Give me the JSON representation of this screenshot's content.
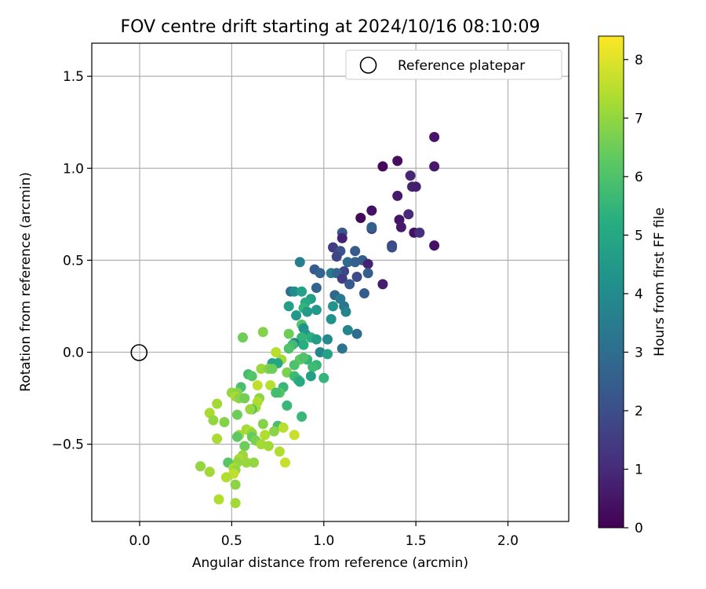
{
  "chart_data": {
    "type": "scatter",
    "title": "FOV centre drift starting at 2024/10/16 08:10:09",
    "xlabel": "Angular distance from reference (arcmin)",
    "ylabel": "Rotation from reference (arcmin)",
    "xlim": [
      -0.26,
      2.33
    ],
    "ylim": [
      -0.92,
      1.68
    ],
    "xticks": [
      0.0,
      0.5,
      1.0,
      1.5,
      2.0
    ],
    "xtick_labels": [
      "0.0",
      "0.5",
      "1.0",
      "1.5",
      "2.0"
    ],
    "yticks": [
      -0.5,
      0.0,
      0.5,
      1.0,
      1.5
    ],
    "ytick_labels": [
      "−0.5",
      "0.0",
      "0.5",
      "1.0",
      "1.5"
    ],
    "grid": true,
    "legend": {
      "placement": "upper-right",
      "entries": [
        {
          "label": "Reference platepar",
          "marker": "open-circle"
        }
      ]
    },
    "reference_point": {
      "x": 0.0,
      "y": 0.0
    },
    "colorbar": {
      "label": "Hours from first FF file",
      "colormap": "viridis",
      "range": [
        0,
        8.4
      ],
      "ticks": [
        0,
        1,
        2,
        3,
        4,
        5,
        6,
        7,
        8
      ],
      "tick_labels": [
        "0",
        "1",
        "2",
        "3",
        "4",
        "5",
        "6",
        "7",
        "8"
      ]
    },
    "points": [
      {
        "x": 1.6,
        "y": 1.17,
        "c": 0.5
      },
      {
        "x": 1.4,
        "y": 1.04,
        "c": 0.3
      },
      {
        "x": 1.32,
        "y": 1.01,
        "c": 0.2
      },
      {
        "x": 1.6,
        "y": 1.01,
        "c": 0.6
      },
      {
        "x": 1.47,
        "y": 0.96,
        "c": 0.9
      },
      {
        "x": 1.48,
        "y": 0.9,
        "c": 0.8
      },
      {
        "x": 1.5,
        "y": 0.9,
        "c": 0.7
      },
      {
        "x": 1.4,
        "y": 0.85,
        "c": 0.6
      },
      {
        "x": 1.26,
        "y": 0.77,
        "c": 0.4
      },
      {
        "x": 1.46,
        "y": 0.75,
        "c": 1.0
      },
      {
        "x": 1.2,
        "y": 0.73,
        "c": 0.2
      },
      {
        "x": 1.41,
        "y": 0.72,
        "c": 0.5
      },
      {
        "x": 1.42,
        "y": 0.68,
        "c": 0.6
      },
      {
        "x": 1.26,
        "y": 0.67,
        "c": 1.6
      },
      {
        "x": 1.26,
        "y": 0.68,
        "c": 2.6
      },
      {
        "x": 1.49,
        "y": 0.65,
        "c": 0.4
      },
      {
        "x": 1.52,
        "y": 0.65,
        "c": 1.1
      },
      {
        "x": 1.1,
        "y": 0.65,
        "c": 2.3
      },
      {
        "x": 1.1,
        "y": 0.62,
        "c": 0.8
      },
      {
        "x": 1.6,
        "y": 0.58,
        "c": 0.4
      },
      {
        "x": 1.37,
        "y": 0.58,
        "c": 1.7
      },
      {
        "x": 1.37,
        "y": 0.57,
        "c": 2.0
      },
      {
        "x": 1.05,
        "y": 0.57,
        "c": 1.5
      },
      {
        "x": 1.09,
        "y": 0.55,
        "c": 2.1
      },
      {
        "x": 1.17,
        "y": 0.55,
        "c": 2.4
      },
      {
        "x": 1.07,
        "y": 0.52,
        "c": 1.8
      },
      {
        "x": 0.87,
        "y": 0.49,
        "c": 3.6
      },
      {
        "x": 1.13,
        "y": 0.49,
        "c": 2.9
      },
      {
        "x": 1.17,
        "y": 0.49,
        "c": 2.6
      },
      {
        "x": 1.21,
        "y": 0.5,
        "c": 2.5
      },
      {
        "x": 1.24,
        "y": 0.48,
        "c": 0.8
      },
      {
        "x": 0.95,
        "y": 0.45,
        "c": 2.4
      },
      {
        "x": 1.11,
        "y": 0.44,
        "c": 1.8
      },
      {
        "x": 1.04,
        "y": 0.43,
        "c": 3.5
      },
      {
        "x": 1.07,
        "y": 0.43,
        "c": 2.7
      },
      {
        "x": 0.98,
        "y": 0.43,
        "c": 2.7
      },
      {
        "x": 1.24,
        "y": 0.43,
        "c": 2.5
      },
      {
        "x": 1.18,
        "y": 0.41,
        "c": 1.9
      },
      {
        "x": 1.1,
        "y": 0.4,
        "c": 1.5
      },
      {
        "x": 1.14,
        "y": 0.37,
        "c": 2.4
      },
      {
        "x": 1.32,
        "y": 0.37,
        "c": 0.7
      },
      {
        "x": 0.96,
        "y": 0.35,
        "c": 2.7
      },
      {
        "x": 0.82,
        "y": 0.33,
        "c": 3.0
      },
      {
        "x": 0.84,
        "y": 0.33,
        "c": 4.1
      },
      {
        "x": 0.88,
        "y": 0.33,
        "c": 4.8
      },
      {
        "x": 1.06,
        "y": 0.31,
        "c": 2.8
      },
      {
        "x": 1.22,
        "y": 0.32,
        "c": 2.4
      },
      {
        "x": 1.09,
        "y": 0.29,
        "c": 3.4
      },
      {
        "x": 0.93,
        "y": 0.29,
        "c": 4.7
      },
      {
        "x": 0.9,
        "y": 0.27,
        "c": 5.1
      },
      {
        "x": 1.11,
        "y": 0.25,
        "c": 3.3
      },
      {
        "x": 0.81,
        "y": 0.25,
        "c": 4.7
      },
      {
        "x": 1.05,
        "y": 0.25,
        "c": 4.3
      },
      {
        "x": 0.89,
        "y": 0.24,
        "c": 5.5
      },
      {
        "x": 0.96,
        "y": 0.23,
        "c": 4.5
      },
      {
        "x": 0.91,
        "y": 0.22,
        "c": 4.5
      },
      {
        "x": 0.85,
        "y": 0.2,
        "c": 4.4
      },
      {
        "x": 1.12,
        "y": 0.22,
        "c": 3.8
      },
      {
        "x": 1.04,
        "y": 0.18,
        "c": 4.2
      },
      {
        "x": 0.88,
        "y": 0.15,
        "c": 6.1
      },
      {
        "x": 0.89,
        "y": 0.13,
        "c": 4.2
      },
      {
        "x": 1.13,
        "y": 0.12,
        "c": 3.8
      },
      {
        "x": 0.9,
        "y": 0.1,
        "c": 4.4
      },
      {
        "x": 1.18,
        "y": 0.1,
        "c": 3.0
      },
      {
        "x": 0.81,
        "y": 0.1,
        "c": 6.5
      },
      {
        "x": 0.93,
        "y": 0.08,
        "c": 5.3
      },
      {
        "x": 0.88,
        "y": 0.08,
        "c": 5.5
      },
      {
        "x": 0.56,
        "y": 0.08,
        "c": 6.5
      },
      {
        "x": 0.96,
        "y": 0.07,
        "c": 4.6
      },
      {
        "x": 1.02,
        "y": 0.07,
        "c": 4.0
      },
      {
        "x": 0.84,
        "y": 0.05,
        "c": 3.7
      },
      {
        "x": 0.67,
        "y": 0.11,
        "c": 6.8
      },
      {
        "x": 0.83,
        "y": 0.04,
        "c": 5.8
      },
      {
        "x": 0.89,
        "y": 0.04,
        "c": 5.2
      },
      {
        "x": 1.1,
        "y": 0.02,
        "c": 3.2
      },
      {
        "x": 0.81,
        "y": 0.02,
        "c": 6.0
      },
      {
        "x": 0.74,
        "y": 0.0,
        "c": 7.5
      },
      {
        "x": 0.98,
        "y": 0.0,
        "c": 3.8
      },
      {
        "x": 1.02,
        "y": -0.01,
        "c": 4.8
      },
      {
        "x": 0.87,
        "y": -0.04,
        "c": 6.3
      },
      {
        "x": 0.77,
        "y": -0.04,
        "c": 7.2
      },
      {
        "x": 0.91,
        "y": -0.04,
        "c": 5.5
      },
      {
        "x": 0.89,
        "y": -0.03,
        "c": 6.0
      },
      {
        "x": 0.72,
        "y": -0.06,
        "c": 4.8
      },
      {
        "x": 0.75,
        "y": -0.06,
        "c": 5.0
      },
      {
        "x": 0.84,
        "y": -0.07,
        "c": 6.0
      },
      {
        "x": 0.96,
        "y": -0.07,
        "c": 5.5
      },
      {
        "x": 0.94,
        "y": -0.08,
        "c": 5.7
      },
      {
        "x": 0.66,
        "y": -0.09,
        "c": 7.1
      },
      {
        "x": 0.7,
        "y": -0.09,
        "c": 6.8
      },
      {
        "x": 0.72,
        "y": -0.09,
        "c": 6.5
      },
      {
        "x": 0.8,
        "y": -0.11,
        "c": 6.7
      },
      {
        "x": 0.59,
        "y": -0.12,
        "c": 5.8
      },
      {
        "x": 0.61,
        "y": -0.13,
        "c": 6.1
      },
      {
        "x": 0.84,
        "y": -0.13,
        "c": 5.7
      },
      {
        "x": 0.93,
        "y": -0.13,
        "c": 4.7
      },
      {
        "x": 0.86,
        "y": -0.15,
        "c": 5.5
      },
      {
        "x": 1.0,
        "y": -0.14,
        "c": 5.5
      },
      {
        "x": 0.87,
        "y": -0.16,
        "c": 5.1
      },
      {
        "x": 0.71,
        "y": -0.18,
        "c": 7.5
      },
      {
        "x": 0.64,
        "y": -0.18,
        "c": 7.6
      },
      {
        "x": 0.55,
        "y": -0.19,
        "c": 5.9
      },
      {
        "x": 0.78,
        "y": -0.19,
        "c": 5.6
      },
      {
        "x": 0.5,
        "y": -0.22,
        "c": 7.0
      },
      {
        "x": 0.53,
        "y": -0.22,
        "c": 6.8
      },
      {
        "x": 0.76,
        "y": -0.22,
        "c": 6.1
      },
      {
        "x": 0.74,
        "y": -0.22,
        "c": 5.8
      },
      {
        "x": 0.52,
        "y": -0.24,
        "c": 7.3
      },
      {
        "x": 0.54,
        "y": -0.25,
        "c": 6.9
      },
      {
        "x": 0.57,
        "y": -0.25,
        "c": 6.6
      },
      {
        "x": 0.65,
        "y": -0.25,
        "c": 6.9
      },
      {
        "x": 0.64,
        "y": -0.27,
        "c": 7.4
      },
      {
        "x": 0.42,
        "y": -0.28,
        "c": 7.2
      },
      {
        "x": 0.63,
        "y": -0.3,
        "c": 7.3
      },
      {
        "x": 0.61,
        "y": -0.31,
        "c": 5.9
      },
      {
        "x": 0.6,
        "y": -0.31,
        "c": 7.1
      },
      {
        "x": 0.38,
        "y": -0.33,
        "c": 7.3
      },
      {
        "x": 0.53,
        "y": -0.34,
        "c": 6.5
      },
      {
        "x": 0.8,
        "y": -0.29,
        "c": 5.6
      },
      {
        "x": 0.88,
        "y": -0.35,
        "c": 5.6
      },
      {
        "x": 0.4,
        "y": -0.37,
        "c": 7.0
      },
      {
        "x": 0.46,
        "y": -0.38,
        "c": 6.8
      },
      {
        "x": 0.67,
        "y": -0.39,
        "c": 6.8
      },
      {
        "x": 0.75,
        "y": -0.4,
        "c": 5.9
      },
      {
        "x": 0.78,
        "y": -0.41,
        "c": 7.5
      },
      {
        "x": 0.58,
        "y": -0.42,
        "c": 7.2
      },
      {
        "x": 0.6,
        "y": -0.43,
        "c": 7.4
      },
      {
        "x": 0.73,
        "y": -0.43,
        "c": 6.9
      },
      {
        "x": 0.61,
        "y": -0.44,
        "c": 7.0
      },
      {
        "x": 0.84,
        "y": -0.45,
        "c": 7.7
      },
      {
        "x": 0.54,
        "y": -0.45,
        "c": 7.2
      },
      {
        "x": 0.68,
        "y": -0.45,
        "c": 7.4
      },
      {
        "x": 0.53,
        "y": -0.46,
        "c": 6.3
      },
      {
        "x": 0.61,
        "y": -0.46,
        "c": 6.4
      },
      {
        "x": 0.42,
        "y": -0.47,
        "c": 7.3
      },
      {
        "x": 0.63,
        "y": -0.48,
        "c": 6.7
      },
      {
        "x": 0.66,
        "y": -0.5,
        "c": 7.2
      },
      {
        "x": 0.7,
        "y": -0.51,
        "c": 7.2
      },
      {
        "x": 0.57,
        "y": -0.51,
        "c": 6.5
      },
      {
        "x": 0.76,
        "y": -0.54,
        "c": 7.4
      },
      {
        "x": 0.56,
        "y": -0.56,
        "c": 7.1
      },
      {
        "x": 0.54,
        "y": -0.58,
        "c": 7.3
      },
      {
        "x": 0.58,
        "y": -0.6,
        "c": 7.1
      },
      {
        "x": 0.62,
        "y": -0.6,
        "c": 7.0
      },
      {
        "x": 0.79,
        "y": -0.6,
        "c": 7.7
      },
      {
        "x": 0.53,
        "y": -0.6,
        "c": 7.0
      },
      {
        "x": 0.48,
        "y": -0.6,
        "c": 6.2
      },
      {
        "x": 0.33,
        "y": -0.62,
        "c": 7.0
      },
      {
        "x": 0.51,
        "y": -0.63,
        "c": 7.4
      },
      {
        "x": 0.52,
        "y": -0.64,
        "c": 7.0
      },
      {
        "x": 0.51,
        "y": -0.66,
        "c": 7.6
      },
      {
        "x": 0.38,
        "y": -0.65,
        "c": 7.2
      },
      {
        "x": 0.47,
        "y": -0.68,
        "c": 7.4
      },
      {
        "x": 0.52,
        "y": -0.72,
        "c": 6.9
      },
      {
        "x": 0.43,
        "y": -0.8,
        "c": 7.4
      },
      {
        "x": 0.52,
        "y": -0.82,
        "c": 7.2
      }
    ]
  }
}
